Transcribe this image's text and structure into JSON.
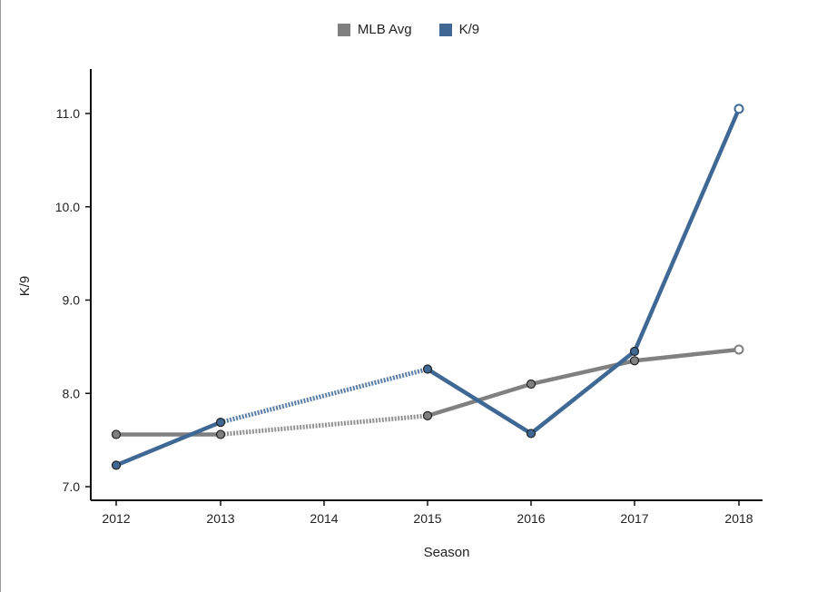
{
  "chart_data": {
    "type": "line",
    "xlabel": "Season",
    "ylabel": "K/9",
    "ylim": [
      6.9,
      11.5
    ],
    "grid": false,
    "legend_position": "top-center",
    "x_categories": [
      "2012",
      "2013",
      "2014",
      "2015",
      "2016",
      "2017",
      "2018"
    ],
    "y_ticks": [
      "7.0",
      "8.0",
      "9.0",
      "10.0",
      "11.0"
    ],
    "series": [
      {
        "name": "MLB Avg",
        "color": "#808080",
        "points": [
          {
            "x": 2012,
            "y": 7.56
          },
          {
            "x": 2013,
            "y": 7.56
          },
          {
            "x": 2015,
            "y": 7.76
          },
          {
            "x": 2016,
            "y": 8.1
          },
          {
            "x": 2017,
            "y": 8.35
          },
          {
            "x": 2018,
            "y": 8.47
          }
        ],
        "dotted_segments": [
          [
            2013,
            2015
          ]
        ]
      },
      {
        "name": "K/9",
        "color": "#3f6895",
        "points": [
          {
            "x": 2012,
            "y": 7.23
          },
          {
            "x": 2013,
            "y": 7.69
          },
          {
            "x": 2015,
            "y": 8.26
          },
          {
            "x": 2016,
            "y": 7.57
          },
          {
            "x": 2017,
            "y": 8.45
          },
          {
            "x": 2018,
            "y": 11.05
          }
        ],
        "dotted_segments": [
          [
            2013,
            2015
          ]
        ]
      }
    ]
  }
}
